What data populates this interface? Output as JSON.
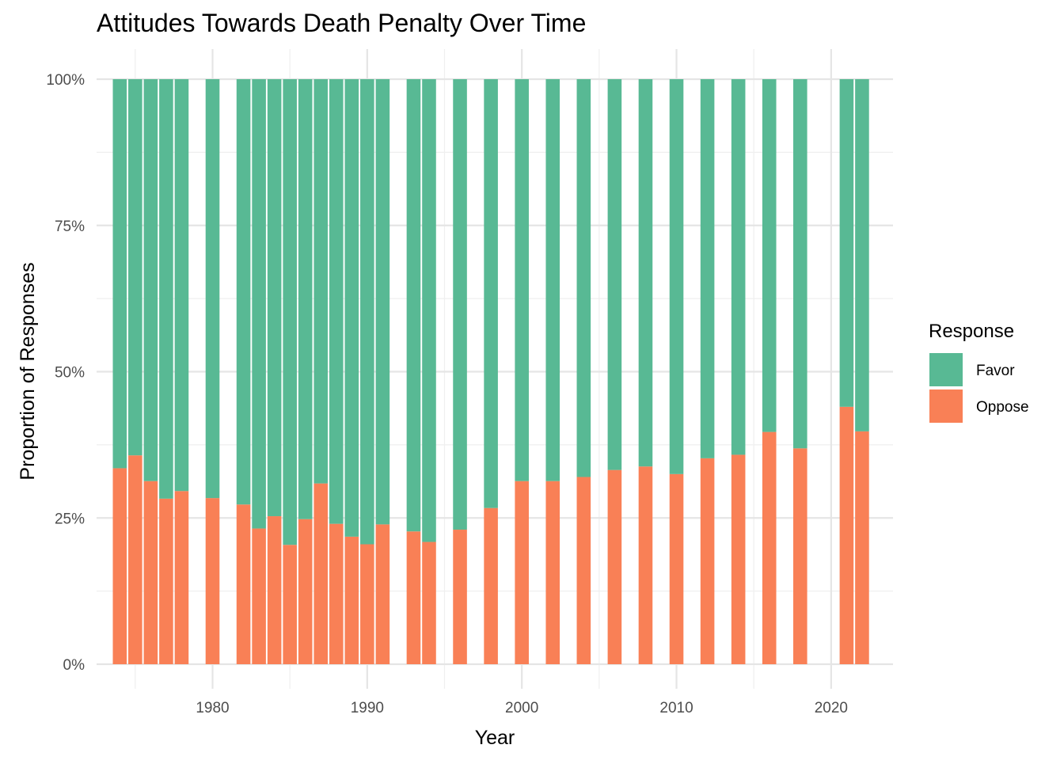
{
  "chart_data": {
    "type": "bar",
    "stacked": true,
    "normalized": true,
    "title": "Attitudes Towards Death Penalty Over Time",
    "xlabel": "Year",
    "ylabel": "Proportion of Responses",
    "xlim": [
      1972.5,
      2024
    ],
    "ylim": [
      0,
      1
    ],
    "x_ticks": [
      1980,
      1990,
      2000,
      2010,
      2020
    ],
    "x_tick_labels": [
      "1980",
      "1990",
      "2000",
      "2010",
      "2020"
    ],
    "y_ticks": [
      0,
      0.25,
      0.5,
      0.75,
      1
    ],
    "y_tick_labels": [
      "0%",
      "25%",
      "50%",
      "75%",
      "100%"
    ],
    "grid": true,
    "legend": {
      "title": "Response",
      "placement": "right",
      "entries": [
        {
          "label": "Favor",
          "color": "#58b994"
        },
        {
          "label": "Oppose",
          "color": "#f98056"
        }
      ]
    },
    "x": [
      1974,
      1975,
      1976,
      1977,
      1978,
      1980,
      1982,
      1983,
      1984,
      1985,
      1986,
      1987,
      1988,
      1989,
      1990,
      1991,
      1993,
      1994,
      1996,
      1998,
      2000,
      2002,
      2004,
      2006,
      2008,
      2010,
      2012,
      2014,
      2016,
      2018,
      2021,
      2022
    ],
    "series": [
      {
        "name": "Oppose",
        "color": "#f98056",
        "values": [
          0.335,
          0.357,
          0.313,
          0.283,
          0.296,
          0.284,
          0.273,
          0.232,
          0.253,
          0.204,
          0.248,
          0.309,
          0.24,
          0.218,
          0.205,
          0.239,
          0.227,
          0.209,
          0.23,
          0.267,
          0.313,
          0.313,
          0.32,
          0.332,
          0.338,
          0.325,
          0.352,
          0.358,
          0.397,
          0.369,
          0.44,
          0.398
        ]
      },
      {
        "name": "Favor",
        "color": "#58b994",
        "values": [
          0.665,
          0.643,
          0.687,
          0.717,
          0.704,
          0.716,
          0.727,
          0.768,
          0.747,
          0.796,
          0.752,
          0.691,
          0.76,
          0.782,
          0.795,
          0.761,
          0.773,
          0.791,
          0.77,
          0.733,
          0.687,
          0.687,
          0.68,
          0.668,
          0.662,
          0.675,
          0.648,
          0.642,
          0.603,
          0.631,
          0.56,
          0.602
        ]
      }
    ]
  }
}
